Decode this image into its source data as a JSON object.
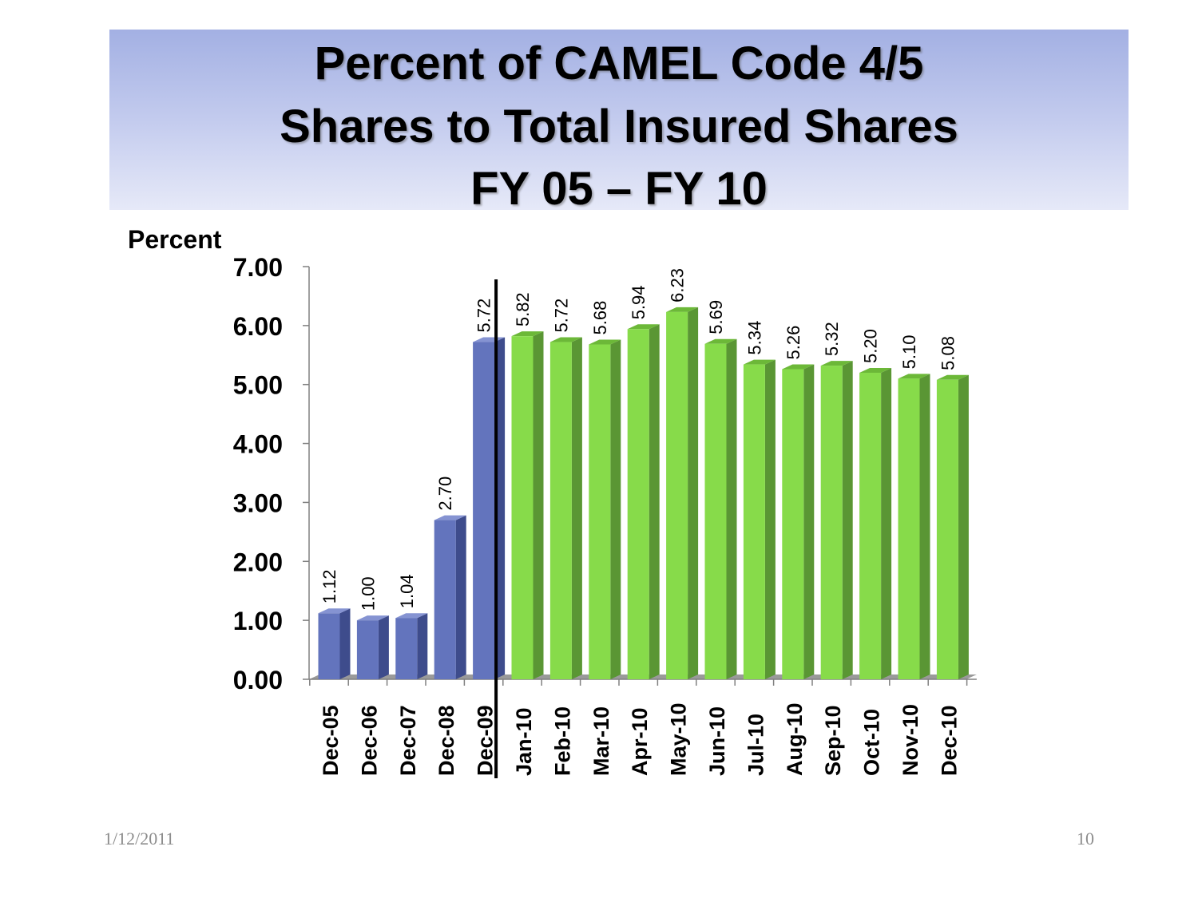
{
  "chart_data": {
    "type": "bar",
    "title_lines": [
      "Percent of CAMEL Code 4/5",
      "Shares to Total Insured Shares",
      "FY 05 – FY 10"
    ],
    "ylabel": "Percent",
    "xlabel": "",
    "ylim": [
      0,
      7
    ],
    "yticks": [
      "0.00",
      "1.00",
      "2.00",
      "3.00",
      "4.00",
      "5.00",
      "6.00",
      "7.00"
    ],
    "categories": [
      "Dec-05",
      "Dec-06",
      "Dec-07",
      "Dec-08",
      "Dec-09",
      "Jan-10",
      "Feb-10",
      "Mar-10",
      "Apr-10",
      "May-10",
      "Jun-10",
      "Jul-10",
      "Aug-10",
      "Sep-10",
      "Oct-10",
      "Nov-10",
      "Dec-10"
    ],
    "values": [
      1.12,
      1.0,
      1.04,
      2.7,
      5.72,
      5.82,
      5.72,
      5.68,
      5.94,
      6.23,
      5.69,
      5.34,
      5.26,
      5.32,
      5.2,
      5.1,
      5.08
    ],
    "value_labels": [
      "1.12",
      "1.00",
      "1.04",
      "2.70",
      "5.72",
      "5.82",
      "5.72",
      "5.68",
      "5.94",
      "6.23",
      "5.69",
      "5.34",
      "5.26",
      "5.32",
      "5.20",
      "5.10",
      "5.08"
    ],
    "groups": [
      {
        "from": 0,
        "to": 4,
        "color": "#6374bd",
        "side_color": "#3e4c8c",
        "top_color": "#8593d2"
      },
      {
        "from": 5,
        "to": 16,
        "color": "#87db4a",
        "side_color": "#5a9634",
        "top_color": "#6cb838"
      }
    ],
    "divider_after": "Dec-09",
    "grid": false,
    "legend": "none"
  },
  "footer": {
    "date": "1/12/2011",
    "page": "10"
  }
}
